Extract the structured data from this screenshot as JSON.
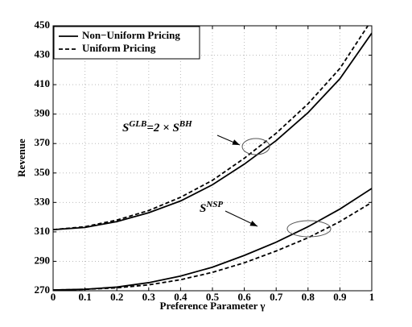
{
  "chart_data": {
    "type": "line",
    "xlabel": "Preference Parameter γ",
    "ylabel": "Revenue",
    "x": [
      0,
      0.1,
      0.2,
      0.3,
      0.4,
      0.5,
      0.6,
      0.7,
      0.8,
      0.9,
      1
    ],
    "series": [
      {
        "name": "Non−Uniform Pricing",
        "dash": "solid",
        "color": "#000000",
        "values": [
          311.5,
          313,
          317,
          323,
          331,
          342,
          356,
          372,
          391,
          414,
          445
        ]
      },
      {
        "name": "Uniform Pricing",
        "dash": "dashed",
        "color": "#000000",
        "values": [
          311.5,
          313.5,
          318,
          324.5,
          333.5,
          345,
          360,
          377,
          397,
          421,
          454
        ]
      },
      {
        "dash": "solid",
        "color": "#000000",
        "values": [
          270.5,
          271,
          272.5,
          275.5,
          280,
          286,
          294,
          303,
          313.5,
          325.5,
          339.5
        ]
      },
      {
        "dash": "dashed",
        "color": "#000000",
        "values": [
          270.5,
          271,
          272,
          274,
          277.5,
          282.5,
          289,
          297,
          306,
          317,
          330
        ]
      }
    ],
    "annotations": [
      {
        "parts": [
          "S",
          "GLB",
          "=2 × S",
          "BH"
        ]
      },
      {
        "parts": [
          "S",
          "NSP"
        ]
      }
    ],
    "xlim": [
      0,
      1
    ],
    "xticks": [
      0,
      0.1,
      0.2,
      0.3,
      0.4,
      0.5,
      0.6,
      0.7,
      0.8,
      0.9,
      1
    ],
    "ylim": [
      270,
      450
    ],
    "yticks": [
      270,
      290,
      310,
      330,
      350,
      370,
      390,
      410,
      430,
      450
    ],
    "grid": true,
    "legend": "upper left"
  }
}
